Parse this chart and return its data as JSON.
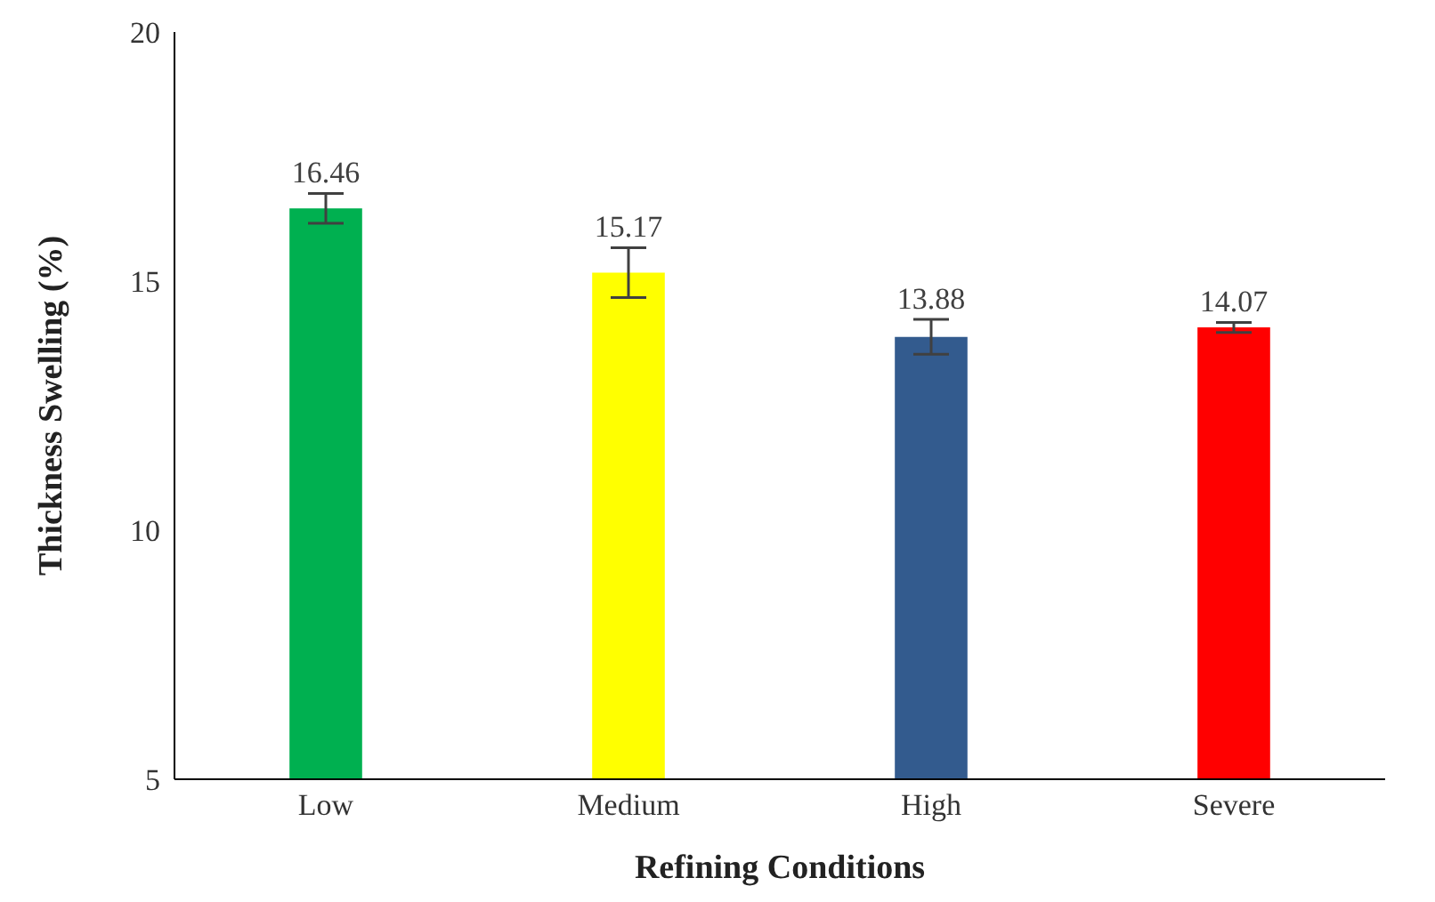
{
  "chart_data": {
    "type": "bar",
    "xlabel": "Refining Conditions",
    "ylabel": "Thickness Swelling (%)",
    "categories": [
      "Low",
      "Medium",
      "High",
      "Severe"
    ],
    "values": [
      16.46,
      15.17,
      13.88,
      14.07
    ],
    "colors": [
      "#00b050",
      "#ffff00",
      "#335b8e",
      "#ff0000"
    ],
    "errors": [
      0.3,
      0.5,
      0.35,
      0.1
    ],
    "ylim": [
      5,
      20
    ],
    "yticks": [
      5,
      10,
      15,
      20
    ],
    "grid": false,
    "data_labels": true
  }
}
